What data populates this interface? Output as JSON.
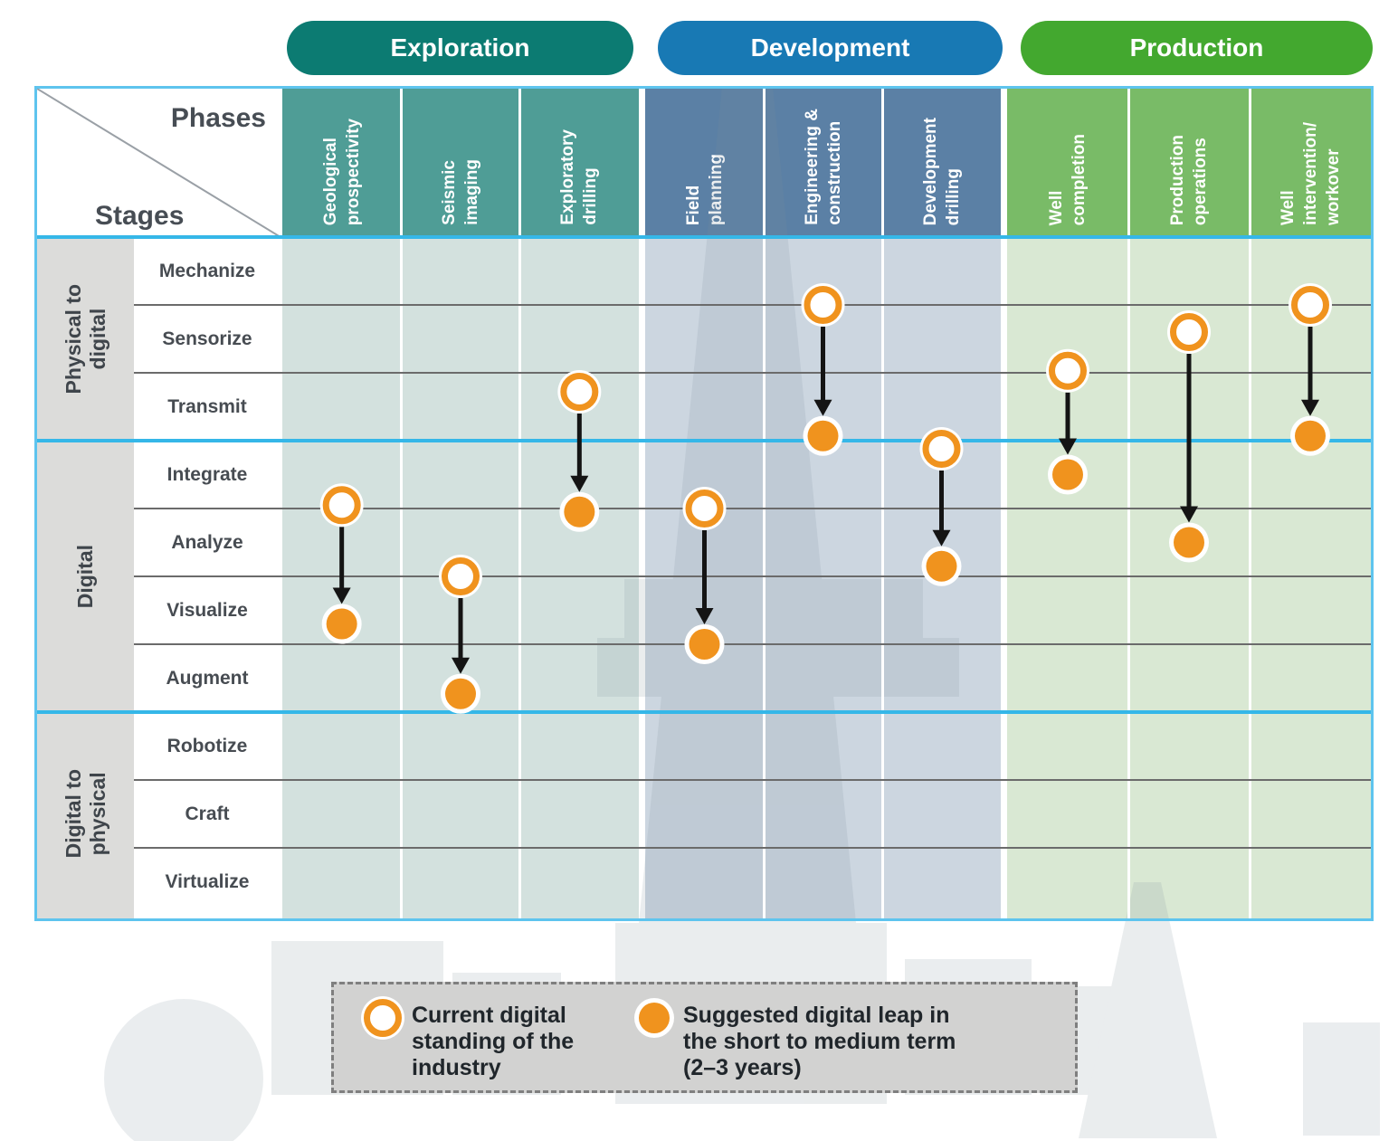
{
  "labels": {
    "phases": "Phases",
    "stages": "Stages"
  },
  "chart_data": {
    "type": "matrix-leap-chart",
    "description": "Current digital standing vs suggested digital leap across oil & gas value-chain phases and digitization stages",
    "level_note": "levels are grid-line units: line k = boundary below stage row k (rows 1..10 = Mechanize..Virtualize)",
    "phases": [
      {
        "name": "Exploration",
        "pill_color": "#0c7b72",
        "band_color": "#4f9d96",
        "tint_color": "#d3e1de",
        "columns": [
          "Geological\nprospectivity",
          "Seismic\nimaging",
          "Exploratory\ndrilling"
        ]
      },
      {
        "name": "Development",
        "pill_color": "#1879b4",
        "band_color": "#5b80a5",
        "tint_color": "#ccd6e0",
        "columns": [
          "Field\nplanning",
          "Engineering &\nconstruction",
          "Development\ndrilling"
        ]
      },
      {
        "name": "Production",
        "pill_color": "#43a82f",
        "band_color": "#79bb67",
        "tint_color": "#d9e8d3",
        "columns": [
          "Well\ncompletion",
          "Production\noperations",
          "Well\nintervention/\nworkover"
        ]
      }
    ],
    "stage_groups": [
      {
        "name": "Physical to\ndigital",
        "stages": [
          "Mechanize",
          "Sensorize",
          "Transmit"
        ]
      },
      {
        "name": "Digital",
        "stages": [
          "Integrate",
          "Analyze",
          "Visualize",
          "Augment"
        ]
      },
      {
        "name": "Digital to\nphysical",
        "stages": [
          "Robotize",
          "Craft",
          "Virtualize"
        ]
      }
    ],
    "markers": [
      {
        "column": "Geological prospectivity",
        "phase": "Exploration",
        "current_stage": "Integrate",
        "target_stage": "Visualize",
        "current_level": 3.95,
        "target_level": 5.7
      },
      {
        "column": "Seismic imaging",
        "phase": "Exploration",
        "current_stage": "Analyze",
        "target_stage": "Augment",
        "current_level": 5.0,
        "target_level": 6.73
      },
      {
        "column": "Exploratory drilling",
        "phase": "Exploration",
        "current_stage": "Transmit",
        "target_stage": "Integrate",
        "current_level": 2.28,
        "target_level": 4.05
      },
      {
        "column": "Field planning",
        "phase": "Development",
        "current_stage": "Integrate",
        "target_stage": "Visualize",
        "current_level": 4.0,
        "target_level": 6.0
      },
      {
        "column": "Engineering & construction",
        "phase": "Development",
        "current_stage": "Mechanize",
        "target_stage": "Transmit",
        "current_level": 1.0,
        "target_level": 2.93
      },
      {
        "column": "Development drilling",
        "phase": "Development",
        "current_stage": "Integrate",
        "target_stage": "Analyze",
        "current_level": 3.12,
        "target_level": 4.85
      },
      {
        "column": "Well completion",
        "phase": "Production",
        "current_stage": "Sensorize",
        "target_stage": "Integrate",
        "current_level": 1.97,
        "target_level": 3.5
      },
      {
        "column": "Production operations",
        "phase": "Production",
        "current_stage": "Sensorize",
        "target_stage": "Analyze",
        "current_level": 1.4,
        "target_level": 4.5
      },
      {
        "column": "Well intervention/workover",
        "phase": "Production",
        "current_stage": "Mechanize",
        "target_stage": "Transmit",
        "current_level": 1.0,
        "target_level": 2.93
      }
    ],
    "legend": [
      {
        "marker": "open-circle",
        "label": "Current digital\nstanding of the\nindustry"
      },
      {
        "marker": "filled-circle",
        "label": "Suggested digital leap in\nthe short to medium term\n(2–3 years)"
      }
    ],
    "colors": {
      "marker_orange": "#f0931e",
      "arrow": "#141414",
      "dark_line": "#6b6b6b",
      "blue_line": "#35b7e8",
      "frame": "#5ec4ee",
      "legend_bg": "#d2d2d1",
      "group_col_bg": "#dcdcda",
      "watermark": "#7f929c"
    }
  }
}
